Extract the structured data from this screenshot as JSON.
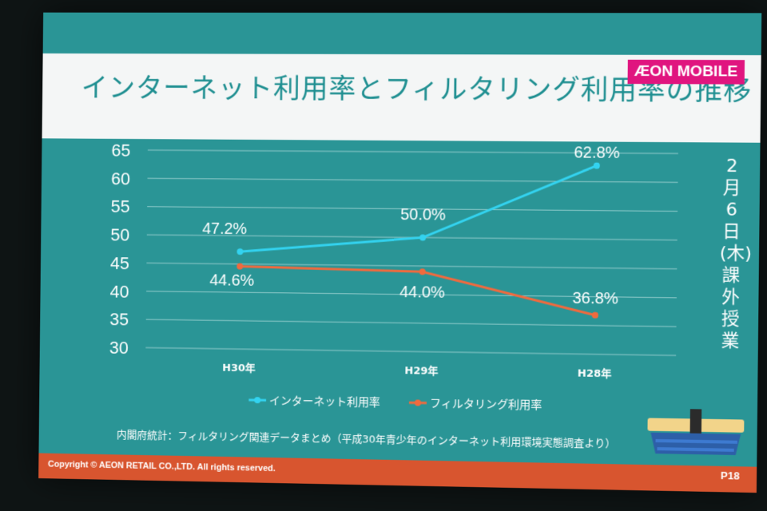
{
  "slide": {
    "title": "インターネット利用率とフィルタリング利用率の推移",
    "logo": "ÆON MOBILE",
    "side_text": "2月6日(木)課外授業",
    "source": "内閣府統計：フィルタリング関連データまとめ（平成30年青少年のインターネット利用環境実態調査より）",
    "copyright": "Copyright © AEON RETAIL CO.,LTD. All rights reserved.",
    "page": "P18"
  },
  "colors": {
    "background": "#2a9596",
    "title_text": "#1f8f91",
    "internet_line": "#33d3f0",
    "filtering_line": "#f06a3e",
    "footer": "#d8552f",
    "logo": "#e0157f"
  },
  "chart_data": {
    "type": "line",
    "categories": [
      "H30年",
      "H29年",
      "H28年"
    ],
    "ylim": [
      30,
      65
    ],
    "yticks": [
      30,
      35,
      40,
      45,
      50,
      55,
      60,
      65
    ],
    "grid": true,
    "legend_placement": "bottom",
    "series": [
      {
        "name": "インターネット利用率",
        "values": [
          47.2,
          50.0,
          62.8
        ],
        "labels": [
          "47.2%",
          "50.0%",
          "62.8%"
        ],
        "color": "#33d3f0"
      },
      {
        "name": "フィルタリング利用率",
        "values": [
          44.6,
          44.0,
          36.8
        ],
        "labels": [
          "44.6%",
          "44.0%",
          "36.8%"
        ],
        "color": "#f06a3e"
      }
    ]
  }
}
